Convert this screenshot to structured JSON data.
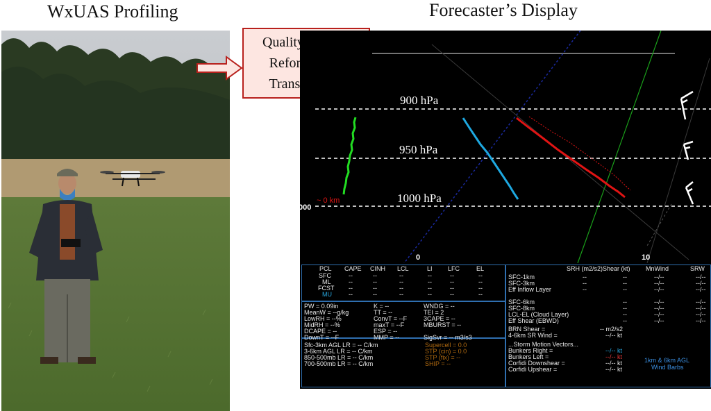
{
  "left_caption": "WxUAS Profiling",
  "right_caption": "Forecaster’s Display",
  "process_box": {
    "lines": [
      "Quality Control",
      "Reformatting",
      "Transmission"
    ]
  },
  "skewt": {
    "pressure_labels": [
      "900 hPa",
      "950 hPa",
      "1000 hPa"
    ],
    "height_label": "~ 0 km",
    "left_edge_label": "000",
    "x_ticks": [
      "0",
      "10"
    ],
    "colors": {
      "temperature": "#e01414",
      "dewpoint": "#1ea8e0",
      "wetbulb": "#22dd22",
      "isobar": "#ffffff",
      "isotherm_green": "#1aa01a",
      "isotherm_blue": "#1a2aa0"
    }
  },
  "panel": {
    "thermo_header": [
      "PCL",
      "CAPE",
      "CINH",
      "LCL",
      "LI",
      "LFC",
      "EL"
    ],
    "parcels": [
      {
        "name": "SFC",
        "vals": [
          "--",
          "--",
          "--",
          "--",
          "--",
          "--"
        ]
      },
      {
        "name": "ML",
        "vals": [
          "--",
          "--",
          "--",
          "--",
          "--",
          "--"
        ]
      },
      {
        "name": "FCST",
        "vals": [
          "--",
          "--",
          "--",
          "--",
          "--",
          "--"
        ]
      },
      {
        "name": "MU",
        "vals": [
          "--",
          "--",
          "--",
          "--",
          "--",
          "--"
        ]
      }
    ],
    "indices_col1": [
      "PW = 0.09in",
      "MeanW = --g/kg",
      "LowRH = --%",
      "MidRH = --%",
      "DCAPE = --",
      "DownT = --F"
    ],
    "indices_col2": [
      "K = --",
      "TT = --",
      "ConvT = --F",
      "maxT = --F",
      "ESP = --",
      "MMP = --"
    ],
    "indices_col3": [
      "WNDG = --",
      "TEI = 2",
      "3CAPE = --",
      "MBURST = --",
      "",
      "SigSvr = -- m3/s3"
    ],
    "lapse_rates": [
      "Sfc-3km AGL LR = -- C/km",
      "3-6km AGL LR = -- C/km",
      "850-500mb LR = -- C/km",
      "700-500mb LR = -- C/km"
    ],
    "composite": [
      "Supercell = 0.0",
      "STP (cin) = 0.0",
      "STP (fix) = --",
      "SHIP = --"
    ],
    "kin_header": [
      "SRH (m2/s2)",
      "Shear (kt)",
      "MnWind",
      "SRW"
    ],
    "kin_rows_a": [
      {
        "name": "SFC-1km",
        "srh": "--",
        "shear": "--",
        "mn": "--/--",
        "srw": "--/--"
      },
      {
        "name": "SFC-3km",
        "srh": "--",
        "shear": "--",
        "mn": "--/--",
        "srw": "--/--"
      },
      {
        "name": "Eff Inflow Layer",
        "srh": "--",
        "shear": "--",
        "mn": "--/--",
        "srw": "--/--"
      }
    ],
    "kin_rows_b": [
      {
        "name": "SFC-6km",
        "shear": "--",
        "mn": "--/--",
        "srw": "--/--"
      },
      {
        "name": "SFC-8km",
        "shear": "--",
        "mn": "--/--",
        "srw": "--/--"
      },
      {
        "name": "LCL-EL (Cloud Layer)",
        "shear": "--",
        "mn": "--/--",
        "srw": "--/--"
      },
      {
        "name": "Eff Shear (EBWD)",
        "shear": "--",
        "mn": "--/--",
        "srw": "--/--"
      }
    ],
    "brn_shear": "BRN Shear =",
    "brn_value": "-- m2/s2",
    "sr_wind": "4-6km SR Wind =",
    "sr_value": "--/-- kt",
    "storm_motion": "...Storm Motion Vectors...",
    "motion_rows": [
      {
        "name": "Bunkers Right =",
        "val": "--/-- kt"
      },
      {
        "name": "Bunkers Left =",
        "val": "--/-- kt"
      },
      {
        "name": "Corfidi Downshear =",
        "val": "--/-- kt"
      },
      {
        "name": "Corfidi Upshear =",
        "val": "--/-- kt"
      }
    ],
    "wind_barb_note": [
      "1km & 6km AGL",
      "Wind Barbs"
    ]
  }
}
